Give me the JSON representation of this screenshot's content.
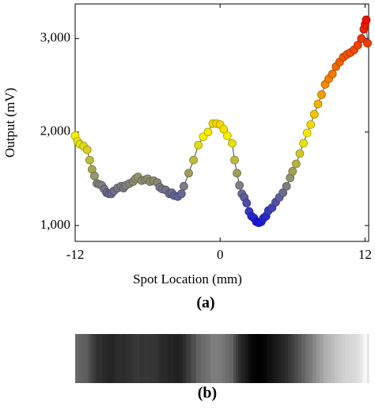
{
  "chart_data": {
    "type": "scatter",
    "xlabel": "Spot Location (mm)",
    "ylabel": "Output (mV)",
    "xlim": [
      -12,
      12.3
    ],
    "ylim": [
      830,
      3370
    ],
    "xticks": [
      -12,
      0,
      12
    ],
    "yticks": [
      {
        "value": 1000,
        "label": "1,000"
      },
      {
        "value": 2000,
        "label": "2,000"
      },
      {
        "value": 3000,
        "label": "3,000"
      }
    ],
    "line_color": "#444444",
    "colormap": [
      {
        "value": 1000,
        "color": "#1010e6"
      },
      {
        "value": 1450,
        "color": "#85857a"
      },
      {
        "value": 1950,
        "color": "#f5f000"
      },
      {
        "value": 3200,
        "color": "#f01000"
      }
    ],
    "x": [
      -12,
      -11.8,
      -11.6,
      -11.3,
      -11,
      -10.8,
      -10.6,
      -10.4,
      -10.2,
      -10,
      -9.8,
      -9.6,
      -9.4,
      -9.2,
      -9,
      -8.8,
      -8.5,
      -8.2,
      -8,
      -7.8,
      -7.5,
      -7.2,
      -7,
      -6.8,
      -6.5,
      -6.2,
      -6,
      -5.8,
      -5.5,
      -5.2,
      -5,
      -4.8,
      -4.5,
      -4.2,
      -4,
      -3.8,
      -3.5,
      -3.2,
      -3,
      -2.6,
      -2.2,
      -1.8,
      -1.4,
      -1,
      -0.6,
      -0.3,
      0,
      0.3,
      0.6,
      1,
      1.2,
      1.4,
      1.6,
      1.8,
      2,
      2.2,
      2.4,
      2.6,
      2.8,
      3,
      3.2,
      3.4,
      3.6,
      3.8,
      4,
      4.3,
      4.6,
      4.9,
      5.2,
      5.5,
      5.8,
      6,
      6.3,
      6.6,
      6.9,
      7.2,
      7.5,
      7.8,
      8.1,
      8.4,
      8.7,
      9,
      9.3,
      9.6,
      9.9,
      10.2,
      10.5,
      10.8,
      11.1,
      11.4,
      11.7,
      11.9,
      12,
      12.1,
      12.2
    ],
    "values": [
      1960,
      1900,
      1870,
      1850,
      1810,
      1700,
      1600,
      1530,
      1450,
      1440,
      1430,
      1390,
      1350,
      1340,
      1340,
      1370,
      1400,
      1420,
      1400,
      1430,
      1450,
      1470,
      1500,
      1520,
      1480,
      1490,
      1500,
      1470,
      1480,
      1460,
      1410,
      1390,
      1380,
      1340,
      1350,
      1320,
      1310,
      1340,
      1420,
      1560,
      1700,
      1860,
      1950,
      2000,
      2090,
      2090,
      2080,
      2030,
      1960,
      1880,
      1700,
      1560,
      1430,
      1340,
      1300,
      1240,
      1150,
      1100,
      1080,
      1040,
      1030,
      1040,
      1080,
      1100,
      1160,
      1190,
      1250,
      1300,
      1350,
      1420,
      1510,
      1580,
      1660,
      1770,
      1880,
      1990,
      2080,
      2190,
      2300,
      2400,
      2510,
      2570,
      2620,
      2700,
      2750,
      2800,
      2830,
      2850,
      2880,
      2930,
      3000,
      3100,
      3150,
      3200,
      2950
    ],
    "annotations": [
      "(a)",
      "(b)"
    ]
  }
}
